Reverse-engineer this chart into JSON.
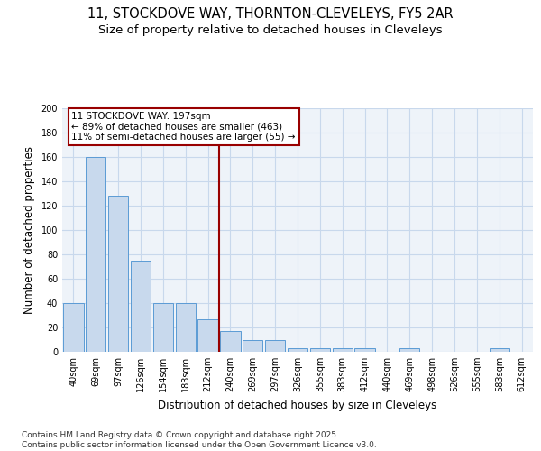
{
  "title": "11, STOCKDOVE WAY, THORNTON-CLEVELEYS, FY5 2AR",
  "subtitle": "Size of property relative to detached houses in Cleveleys",
  "xlabel": "Distribution of detached houses by size in Cleveleys",
  "ylabel": "Number of detached properties",
  "categories": [
    "40sqm",
    "69sqm",
    "97sqm",
    "126sqm",
    "154sqm",
    "183sqm",
    "212sqm",
    "240sqm",
    "269sqm",
    "297sqm",
    "326sqm",
    "355sqm",
    "383sqm",
    "412sqm",
    "440sqm",
    "469sqm",
    "498sqm",
    "526sqm",
    "555sqm",
    "583sqm",
    "612sqm"
  ],
  "values": [
    40,
    160,
    128,
    75,
    40,
    40,
    27,
    17,
    10,
    10,
    3,
    3,
    3,
    3,
    0,
    3,
    0,
    0,
    0,
    3,
    0
  ],
  "bar_color": "#c8d9ed",
  "bar_edge_color": "#5b9bd5",
  "vline_x": 6.5,
  "annotation_text": "11 STOCKDOVE WAY: 197sqm\n← 89% of detached houses are smaller (463)\n11% of semi-detached houses are larger (55) →",
  "annotation_box_color": "#ffffff",
  "annotation_box_edge": "#990000",
  "vline_color": "#990000",
  "grid_color": "#c8d8ec",
  "bg_color": "#eef3f9",
  "footer": "Contains HM Land Registry data © Crown copyright and database right 2025.\nContains public sector information licensed under the Open Government Licence v3.0.",
  "ylim": [
    0,
    200
  ],
  "yticks": [
    0,
    20,
    40,
    60,
    80,
    100,
    120,
    140,
    160,
    180,
    200
  ],
  "title_fontsize": 10.5,
  "subtitle_fontsize": 9.5,
  "axis_label_fontsize": 8.5,
  "tick_fontsize": 7,
  "footer_fontsize": 6.5,
  "ann_fontsize": 7.5
}
